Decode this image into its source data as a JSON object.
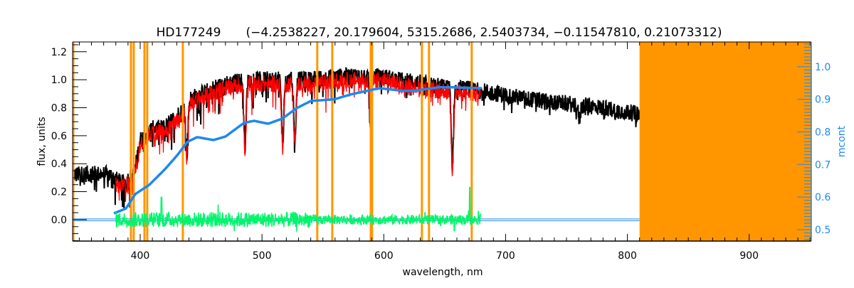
{
  "chart_data": {
    "type": "line",
    "title": "HD177249",
    "subtitle": "(−4.2538227, 20.179604, 5315.2686, 2.5403734, −0.11547810, 0.21073312)",
    "xlabel": "wavelength, nm",
    "ylabel": "flux, units",
    "y2label": "mcont",
    "xlim": [
      344.5,
      951
    ],
    "ylim": [
      -0.153,
      1.27
    ],
    "y2lim": [
      0.465,
      1.076
    ],
    "xticks": [
      400,
      500,
      600,
      700,
      800,
      900
    ],
    "yticks": [
      0.0,
      0.2,
      0.4,
      0.6,
      0.8,
      1.0,
      1.2
    ],
    "y2ticks": [
      0.5,
      0.6,
      0.7,
      0.8,
      0.9,
      1.0
    ],
    "grid": false,
    "colors": {
      "observed": "#000000",
      "model": "#ff0000",
      "mcont": "#1e88f0",
      "residual": "#00f56a",
      "mask": "#ff9600",
      "axis2": "#1e88f0"
    },
    "masked_band": [
      810,
      951
    ],
    "masked_lines": [
      392.4,
      394.7,
      403.5,
      405.8,
      435.0,
      545.4,
      557.7,
      589.3,
      590.4,
      631.3,
      637.1,
      672.2
    ],
    "series": [
      {
        "key": "observed",
        "axis": "left",
        "range": [
          345,
          810
        ],
        "x": [
          345,
          360,
          375,
          385,
          395,
          400,
          410,
          420,
          430,
          440,
          450,
          460,
          470,
          480,
          490,
          500,
          520,
          540,
          560,
          580,
          600,
          620,
          640,
          660,
          680,
          700,
          720,
          740,
          760,
          780,
          800,
          810
        ],
        "y": [
          0.3,
          0.31,
          0.3,
          0.24,
          0.3,
          0.55,
          0.63,
          0.64,
          0.72,
          0.84,
          0.88,
          0.92,
          0.95,
          0.97,
          0.98,
          0.98,
          0.98,
          0.98,
          1.0,
          1.01,
          1.0,
          0.97,
          0.94,
          0.92,
          0.9,
          0.87,
          0.84,
          0.82,
          0.8,
          0.78,
          0.75,
          0.73
        ],
        "absorption": [
          [
            486.1,
            0.5
          ],
          [
            517.0,
            0.53
          ],
          [
            589.2,
            0.65
          ],
          [
            656.3,
            0.37
          ],
          [
            527.0,
            0.58
          ],
          [
            438.3,
            0.45
          ],
          [
            760.5,
            0.7
          ]
        ]
      },
      {
        "key": "model",
        "axis": "left",
        "range": [
          380,
          680
        ]
      },
      {
        "key": "mcont",
        "axis": "right",
        "x": [
          378.4,
          388.3,
          395.9,
          407.6,
          421.0,
          431.0,
          438.6,
          446.7,
          460.2,
          470.1,
          485.3,
          493.5,
          505.1,
          516.8,
          528.5,
          540.2,
          559.5,
          572.9,
          588.7,
          596.3,
          606.2,
          616.1,
          625.5,
          635.4,
          645.3,
          654.7,
          680.4
        ],
        "y": [
          0.55,
          0.565,
          0.609,
          0.638,
          0.688,
          0.731,
          0.769,
          0.784,
          0.775,
          0.786,
          0.828,
          0.834,
          0.825,
          0.841,
          0.873,
          0.895,
          0.9,
          0.915,
          0.928,
          0.934,
          0.93,
          0.926,
          0.926,
          0.932,
          0.937,
          0.937,
          0.934
        ]
      },
      {
        "key": "baseline",
        "axis": "left",
        "range": [
          345,
          810
        ],
        "y": 0.0
      },
      {
        "key": "residual",
        "axis": "left",
        "range": [
          380,
          680
        ],
        "center": 0.0,
        "spread": 0.05,
        "spikes": [
          [
            670.5,
            0.23
          ],
          [
            417.5,
            0.16
          ],
          [
            658,
            -0.08
          ]
        ]
      }
    ]
  }
}
